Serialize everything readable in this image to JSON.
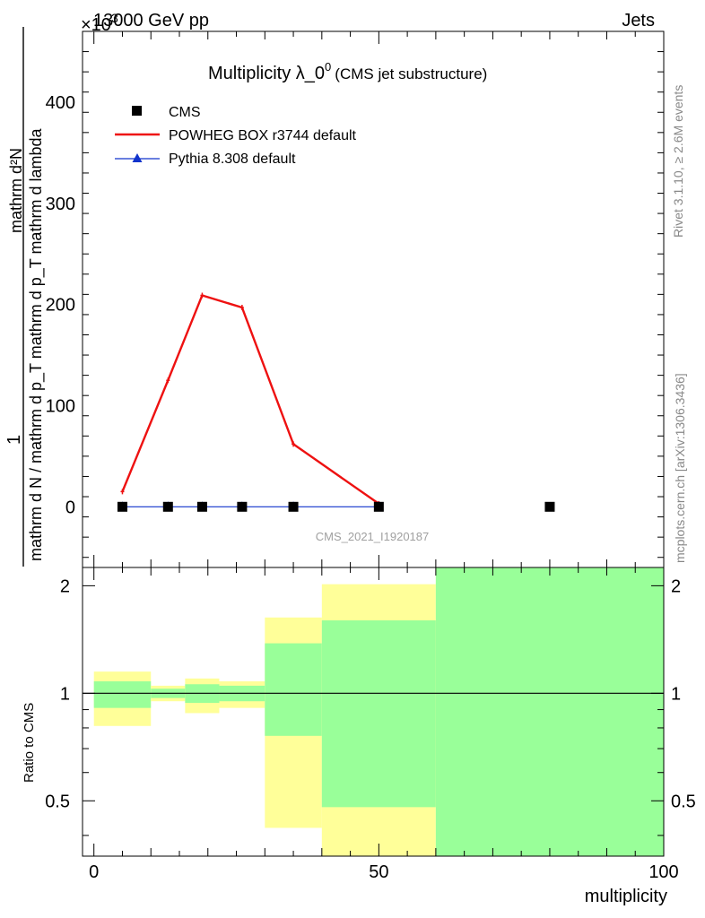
{
  "header": {
    "left": "13000 GeV pp",
    "right": "Jets",
    "exponent": "×10",
    "exponent_power": "3"
  },
  "title": {
    "main": "Multiplicity λ_0",
    "sup": "0",
    "suffix": "(CMS jet substructure)"
  },
  "side_labels": {
    "rivet": "Rivet 3.1.10, ≥ 2.6M events",
    "mcplots": "mcplots.cern.ch [arXiv:1306.3436]"
  },
  "watermark": "CMS_2021_I1920187",
  "chart_data": [
    {
      "type": "line",
      "panel": "main",
      "ylabel_num": "1",
      "ylabel_den": "mathrm d N / mathrm d p_T mathrm d p_T mathrm d lambda",
      "ylabel_top": "mathrm d²N",
      "xlim": [
        -2,
        100
      ],
      "ylim": [
        -60,
        470
      ],
      "y_scale_factor": "×10^3",
      "yticks": [
        0,
        100,
        200,
        300,
        400
      ],
      "ytick_labels": [
        "0",
        "100",
        "200",
        "300",
        "400"
      ],
      "legend_position": "top-left",
      "series": [
        {
          "name": "CMS",
          "color": "#000000",
          "marker": "square",
          "x": [
            5,
            13,
            19,
            26,
            35,
            50,
            80
          ],
          "y": [
            0,
            0,
            0,
            0,
            0,
            0,
            0
          ]
        },
        {
          "name": "POWHEG BOX r3744 default",
          "color": "#ee1111",
          "marker": "none",
          "x": [
            5,
            13,
            19,
            26,
            35,
            50
          ],
          "y": [
            15,
            125,
            209,
            197,
            62,
            3
          ]
        },
        {
          "name": "Pythia 8.308 default",
          "color": "#1133cc",
          "marker": "triangle",
          "x": [
            5,
            13,
            19,
            26,
            35,
            50
          ],
          "y": [
            0,
            0,
            0,
            0,
            0,
            0
          ]
        }
      ]
    },
    {
      "type": "area",
      "panel": "ratio",
      "ylabel": "Ratio to CMS",
      "xlabel": "multiplicity",
      "xlim": [
        -2,
        100
      ],
      "ylim": [
        0.35,
        2.25
      ],
      "xticks": [
        0,
        50,
        100
      ],
      "xtick_labels": [
        "0",
        "50",
        "100"
      ],
      "yticks": [
        0.5,
        1,
        2
      ],
      "ytick_labels": [
        "0.5",
        "1",
        "2"
      ],
      "reference_line": 1,
      "bands": [
        {
          "x0": 0,
          "x1": 10,
          "green": [
            0.91,
            1.08
          ],
          "yellow": [
            0.81,
            1.15
          ]
        },
        {
          "x0": 10,
          "x1": 16,
          "green": [
            0.97,
            1.03
          ],
          "yellow": [
            0.95,
            1.05
          ]
        },
        {
          "x0": 16,
          "x1": 22,
          "green": [
            0.94,
            1.06
          ],
          "yellow": [
            0.88,
            1.1
          ]
        },
        {
          "x0": 22,
          "x1": 30,
          "green": [
            0.95,
            1.05
          ],
          "yellow": [
            0.91,
            1.08
          ]
        },
        {
          "x0": 30,
          "x1": 40,
          "green": [
            0.76,
            1.38
          ],
          "yellow": [
            0.42,
            1.63
          ]
        },
        {
          "x0": 40,
          "x1": 60,
          "green": [
            0.48,
            1.6
          ],
          "yellow": [
            0.35,
            2.02
          ]
        },
        {
          "x0": 60,
          "x1": 100,
          "green": [
            0.35,
            2.25
          ],
          "yellow": [
            0.35,
            2.25
          ]
        }
      ],
      "band_colors": {
        "green": "#99ff99",
        "yellow": "#ffff99"
      }
    }
  ]
}
